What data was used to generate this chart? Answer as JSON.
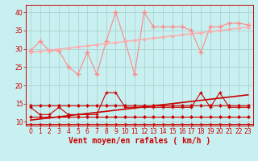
{
  "background_color": "#c8f0f0",
  "grid_color": "#aacccc",
  "xlabel": "Vent moyen/en rafales ( km/h )",
  "xlabel_color": "#cc0000",
  "xlabel_fontsize": 7,
  "xtick_fontsize": 5.5,
  "ytick_fontsize": 5.5,
  "ylim": [
    9,
    42
  ],
  "xlim": [
    -0.5,
    23.5
  ],
  "yticks": [
    10,
    15,
    20,
    25,
    30,
    35,
    40
  ],
  "xticks": [
    0,
    1,
    2,
    3,
    4,
    5,
    6,
    7,
    8,
    9,
    10,
    11,
    12,
    13,
    14,
    15,
    16,
    17,
    18,
    19,
    20,
    21,
    22,
    23
  ],
  "series": [
    {
      "name": "rafales_jagged",
      "color": "#ff8888",
      "linewidth": 0.8,
      "marker": "+",
      "markersize": 4,
      "markeredgewidth": 1.0,
      "data_x": [
        0,
        1,
        2,
        3,
        4,
        5,
        6,
        7,
        8,
        9,
        10,
        11,
        12,
        13,
        14,
        15,
        16,
        17,
        18,
        19,
        20,
        21,
        22,
        23
      ],
      "data_y": [
        29.5,
        32,
        29.5,
        29.5,
        25,
        23,
        29,
        23,
        32,
        40,
        32,
        23,
        40,
        36,
        36,
        36,
        36,
        35,
        29,
        36,
        36,
        37,
        37,
        36.5
      ]
    },
    {
      "name": "rafales_trend",
      "color": "#ffaaaa",
      "linewidth": 1.0,
      "marker": "D",
      "markersize": 2,
      "markeredgewidth": 0.5,
      "data_x": [
        0,
        1,
        2,
        3,
        4,
        5,
        6,
        7,
        8,
        9,
        10,
        11,
        12,
        13,
        14,
        15,
        16,
        17,
        18,
        19,
        20,
        21,
        22,
        23
      ],
      "data_y": [
        29,
        29.3,
        29.6,
        29.9,
        30.2,
        30.5,
        30.8,
        31.1,
        31.4,
        31.7,
        32.0,
        32.3,
        32.6,
        32.9,
        33.2,
        33.5,
        33.8,
        34.1,
        34.4,
        34.7,
        35.0,
        35.3,
        35.6,
        35.9
      ]
    },
    {
      "name": "vent_jagged",
      "color": "#cc0000",
      "linewidth": 0.8,
      "marker": "+",
      "markersize": 3.5,
      "markeredgewidth": 1.0,
      "data_x": [
        0,
        1,
        2,
        3,
        4,
        5,
        6,
        7,
        8,
        9,
        10,
        11,
        12,
        13,
        14,
        15,
        16,
        17,
        18,
        19,
        20,
        21,
        22,
        23
      ],
      "data_y": [
        14,
        12,
        12,
        14,
        12,
        12,
        12,
        12,
        18,
        18,
        14,
        14,
        14,
        14,
        14,
        14,
        14,
        14,
        18,
        14,
        18,
        14,
        14,
        14
      ]
    },
    {
      "name": "vent_trend",
      "color": "#cc0000",
      "linewidth": 1.2,
      "marker": null,
      "markersize": 0,
      "markeredgewidth": 0,
      "data_x": [
        0,
        1,
        2,
        3,
        4,
        5,
        6,
        7,
        8,
        9,
        10,
        11,
        12,
        13,
        14,
        15,
        16,
        17,
        18,
        19,
        20,
        21,
        22,
        23
      ],
      "data_y": [
        10.5,
        10.8,
        11.1,
        11.4,
        11.7,
        12.0,
        12.3,
        12.6,
        12.9,
        13.2,
        13.5,
        13.8,
        14.1,
        14.4,
        14.7,
        15.0,
        15.3,
        15.6,
        15.9,
        16.2,
        16.5,
        16.8,
        17.1,
        17.4
      ]
    },
    {
      "name": "vent_flat_upper",
      "color": "#cc0000",
      "linewidth": 0.8,
      "marker": "D",
      "markersize": 2,
      "markeredgewidth": 0.5,
      "data_x": [
        0,
        1,
        2,
        3,
        4,
        5,
        6,
        7,
        8,
        9,
        10,
        11,
        12,
        13,
        14,
        15,
        16,
        17,
        18,
        19,
        20,
        21,
        22,
        23
      ],
      "data_y": [
        14.5,
        14.5,
        14.5,
        14.5,
        14.5,
        14.5,
        14.5,
        14.5,
        14.5,
        14.5,
        14.5,
        14.5,
        14.5,
        14.5,
        14.5,
        14.5,
        14.5,
        14.5,
        14.5,
        14.5,
        14.5,
        14.5,
        14.5,
        14.5
      ]
    },
    {
      "name": "vent_flat_lower",
      "color": "#cc0000",
      "linewidth": 0.8,
      "marker": "D",
      "markersize": 2,
      "markeredgewidth": 0.5,
      "data_x": [
        0,
        1,
        2,
        3,
        4,
        5,
        6,
        7,
        8,
        9,
        10,
        11,
        12,
        13,
        14,
        15,
        16,
        17,
        18,
        19,
        20,
        21,
        22,
        23
      ],
      "data_y": [
        11.5,
        11.5,
        11.5,
        11.5,
        11.5,
        11.5,
        11.5,
        11.5,
        11.5,
        11.5,
        11.5,
        11.5,
        11.5,
        11.5,
        11.5,
        11.5,
        11.5,
        11.5,
        11.5,
        11.5,
        11.5,
        11.5,
        11.5,
        11.5
      ]
    }
  ],
  "arrow_color": "#cc0000",
  "bottom_line_color": "#cc0000"
}
